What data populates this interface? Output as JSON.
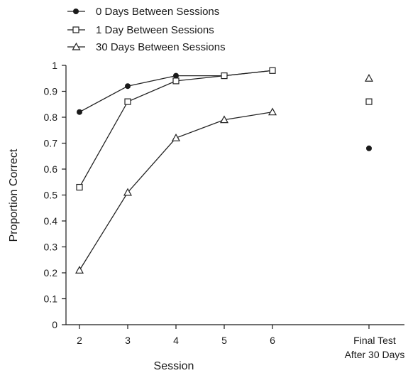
{
  "chart_data": {
    "type": "line",
    "xlabel": "Session",
    "ylabel": "Proportion Correct",
    "ylim": [
      0,
      1
    ],
    "yticks": [
      "0",
      "0.1",
      "0.2",
      "0.3",
      "0.4",
      "0.5",
      "0.6",
      "0.7",
      "0.8",
      "0.9",
      "1"
    ],
    "categories": [
      "2",
      "3",
      "4",
      "5",
      "6"
    ],
    "final_category_lines": [
      "Final Test",
      "After 30 Days"
    ],
    "grid": false,
    "legend_position": "top-left",
    "series": [
      {
        "name": "0 Days Between Sessions",
        "marker": "filled-circle",
        "values": [
          0.82,
          0.92,
          0.96,
          0.96,
          0.98
        ],
        "final": 0.68
      },
      {
        "name": "1 Day Between Sessions",
        "marker": "open-square",
        "values": [
          0.53,
          0.86,
          0.94,
          0.96,
          0.98
        ],
        "final": 0.86
      },
      {
        "name": "30 Days Between Sessions",
        "marker": "open-triangle",
        "values": [
          0.21,
          0.51,
          0.72,
          0.79,
          0.82
        ],
        "final": 0.95
      }
    ]
  }
}
